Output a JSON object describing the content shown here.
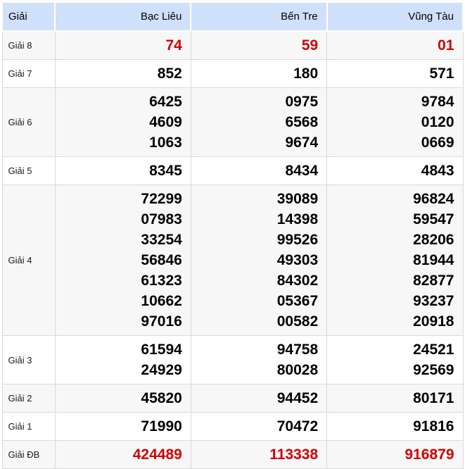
{
  "table": {
    "header": {
      "label": "Giải",
      "columns": [
        "Bạc Liêu",
        "Bến Tre",
        "Vũng Tàu"
      ]
    },
    "rows": [
      {
        "label": "Giải 8",
        "highlight": true,
        "values": [
          [
            "74"
          ],
          [
            "59"
          ],
          [
            "01"
          ]
        ]
      },
      {
        "label": "Giải 7",
        "highlight": false,
        "values": [
          [
            "852"
          ],
          [
            "180"
          ],
          [
            "571"
          ]
        ]
      },
      {
        "label": "Giải 6",
        "highlight": false,
        "values": [
          [
            "6425",
            "4609",
            "1063"
          ],
          [
            "0975",
            "6568",
            "9674"
          ],
          [
            "9784",
            "0120",
            "0669"
          ]
        ]
      },
      {
        "label": "Giải 5",
        "highlight": false,
        "values": [
          [
            "8345"
          ],
          [
            "8434"
          ],
          [
            "4843"
          ]
        ]
      },
      {
        "label": "Giải 4",
        "highlight": false,
        "values": [
          [
            "72299",
            "07983",
            "33254",
            "56846",
            "61323",
            "10662",
            "97016"
          ],
          [
            "39089",
            "14398",
            "99526",
            "49303",
            "84302",
            "05367",
            "00582"
          ],
          [
            "96824",
            "59547",
            "28206",
            "81944",
            "82877",
            "93237",
            "20918"
          ]
        ]
      },
      {
        "label": "Giải 3",
        "highlight": false,
        "values": [
          [
            "61594",
            "24929"
          ],
          [
            "94758",
            "80028"
          ],
          [
            "24521",
            "92569"
          ]
        ]
      },
      {
        "label": "Giải 2",
        "highlight": false,
        "values": [
          [
            "45820"
          ],
          [
            "94452"
          ],
          [
            "80171"
          ]
        ]
      },
      {
        "label": "Giải 1",
        "highlight": false,
        "values": [
          [
            "71990"
          ],
          [
            "70472"
          ],
          [
            "91816"
          ]
        ]
      },
      {
        "label": "Giải ĐB",
        "highlight": true,
        "values": [
          [
            "424489"
          ],
          [
            "113338"
          ],
          [
            "916879"
          ]
        ]
      }
    ]
  },
  "colors": {
    "header_bg": "#cfe0fb",
    "row_alt_bg": "#f7f7f7",
    "highlight_text": "#d30000",
    "number_text": "#000000",
    "border": "#d9d9d9"
  }
}
